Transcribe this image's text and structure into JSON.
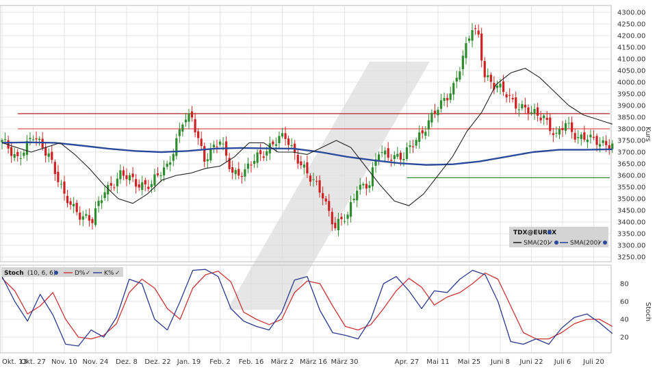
{
  "chart_data": [
    {
      "type": "candlestick",
      "symbol_label": "TDX@EUREX",
      "ylabel": "Kurs",
      "ylim": [
        3210,
        4300
      ],
      "yticks": [
        "4300.00",
        "4250.00",
        "4200.00",
        "4150.00",
        "4100.00",
        "4050.00",
        "4000.00",
        "3950.00",
        "3900.00",
        "3850.00",
        "3800.00",
        "3750.00",
        "3700.00",
        "3650.00",
        "3600.00",
        "3550.00",
        "3500.00",
        "3450.00",
        "3400.00",
        "3350.00",
        "3300.00",
        "3250.00"
      ],
      "ytick_values": [
        4300,
        4250,
        4200,
        4150,
        4100,
        4050,
        4000,
        3950,
        3900,
        3850,
        3800,
        3750,
        3700,
        3650,
        3600,
        3550,
        3500,
        3450,
        3400,
        3350,
        3300,
        3250
      ],
      "x_labels": [
        "Okt. 13",
        "Okt. 27",
        "Nov. 10",
        "Nov. 24",
        "Dez. 8",
        "Dez. 22",
        "Jan. 19",
        "Feb. 2",
        "Feb. 16",
        "März 2",
        "März 16",
        "März 30",
        "Apr. 27",
        "Mai 11",
        "Mai 25",
        "Juni 8",
        "Juni 22",
        "Juli 6",
        "Juli 20"
      ],
      "x_label_index": [
        0,
        10,
        20,
        30,
        40,
        50,
        60,
        70,
        80,
        90,
        100,
        110,
        130,
        140,
        150,
        160,
        170,
        180,
        190
      ],
      "bar_count": 197,
      "close_anchors": [
        [
          0,
          3740
        ],
        [
          5,
          3680
        ],
        [
          10,
          3760
        ],
        [
          15,
          3700
        ],
        [
          20,
          3500
        ],
        [
          25,
          3440
        ],
        [
          29,
          3400
        ],
        [
          33,
          3540
        ],
        [
          38,
          3600
        ],
        [
          43,
          3570
        ],
        [
          48,
          3560
        ],
        [
          53,
          3640
        ],
        [
          58,
          3830
        ],
        [
          61,
          3840
        ],
        [
          65,
          3680
        ],
        [
          70,
          3740
        ],
        [
          74,
          3620
        ],
        [
          78,
          3610
        ],
        [
          82,
          3680
        ],
        [
          87,
          3740
        ],
        [
          91,
          3760
        ],
        [
          95,
          3680
        ],
        [
          99,
          3580
        ],
        [
          103,
          3520
        ],
        [
          107,
          3380
        ],
        [
          111,
          3420
        ],
        [
          114,
          3560
        ],
        [
          118,
          3560
        ],
        [
          121,
          3700
        ],
        [
          125,
          3690
        ],
        [
          129,
          3670
        ],
        [
          133,
          3760
        ],
        [
          137,
          3830
        ],
        [
          141,
          3900
        ],
        [
          145,
          3990
        ],
        [
          149,
          4140
        ],
        [
          151,
          4230
        ],
        [
          153,
          4200
        ],
        [
          155,
          4040
        ],
        [
          158,
          3980
        ],
        [
          162,
          3950
        ],
        [
          166,
          3900
        ],
        [
          170,
          3860
        ],
        [
          174,
          3860
        ],
        [
          178,
          3760
        ],
        [
          181,
          3820
        ],
        [
          185,
          3770
        ],
        [
          188,
          3760
        ],
        [
          190,
          3740
        ]
      ],
      "series": [
        {
          "name": "SMA(20)",
          "color": "#222222",
          "values": [
            3740,
            3720,
            3700,
            3720,
            3740,
            3690,
            3630,
            3560,
            3500,
            3480,
            3520,
            3580,
            3600,
            3610,
            3630,
            3640,
            3680,
            3740,
            3740,
            3700,
            3700,
            3690,
            3720,
            3750,
            3720,
            3640,
            3560,
            3490,
            3470,
            3520,
            3600,
            3680,
            3790,
            3870,
            3990,
            4040,
            4060,
            4020,
            3960,
            3900,
            3860,
            3840,
            3820
          ]
        },
        {
          "name": "SMA(200)",
          "color": "#2a4b9b",
          "values": [
            3740,
            3742,
            3740,
            3728,
            3715,
            3705,
            3700,
            3705,
            3715,
            3718,
            3716,
            3715,
            3700,
            3680,
            3665,
            3652,
            3645,
            3648,
            3660,
            3680,
            3700,
            3710,
            3710,
            3712
          ]
        }
      ],
      "hlines": [
        {
          "value": 3865,
          "color": "#b22222"
        },
        {
          "value": 3800,
          "color": "#e05050"
        },
        {
          "value": 3590,
          "color": "#2e8b2e"
        }
      ],
      "legend_placement": "bottom-right"
    },
    {
      "type": "line",
      "title": "Stoch",
      "params": "(10, 6, 6)",
      "ylabel": "Stoch",
      "ylim": [
        0,
        100
      ],
      "yticks": [
        "80",
        "60",
        "40",
        "20"
      ],
      "ytick_values": [
        80,
        60,
        40,
        20
      ],
      "series": [
        {
          "name": "D%",
          "color": "#cc3333",
          "values": [
            86,
            72,
            46,
            55,
            70,
            40,
            20,
            18,
            22,
            35,
            70,
            85,
            75,
            52,
            40,
            75,
            90,
            94,
            82,
            48,
            40,
            34,
            40,
            70,
            83,
            80,
            55,
            32,
            28,
            34,
            52,
            72,
            86,
            76,
            56,
            65,
            70,
            80,
            92,
            85,
            55,
            25,
            18,
            18,
            25,
            35,
            40,
            40,
            32
          ]
        },
        {
          "name": "K%",
          "color": "#2b3a8f",
          "values": [
            88,
            60,
            38,
            68,
            45,
            12,
            10,
            28,
            20,
            42,
            85,
            80,
            40,
            28,
            60,
            95,
            96,
            88,
            52,
            38,
            32,
            28,
            48,
            84,
            88,
            50,
            25,
            22,
            18,
            40,
            80,
            88,
            72,
            52,
            72,
            70,
            85,
            95,
            90,
            60,
            15,
            12,
            18,
            12,
            30,
            42,
            46,
            36,
            24
          ]
        }
      ],
      "legend_placement": "top-left"
    }
  ],
  "colors": {
    "up_candle": "#2e8b2e",
    "down_candle": "#cc2222",
    "grid": "#dddddd",
    "legend_box": "#d4d4d4"
  }
}
